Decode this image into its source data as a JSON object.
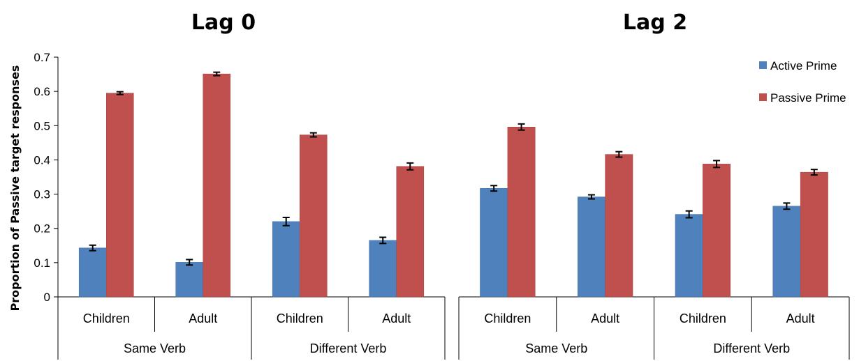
{
  "chart_data": {
    "type": "bar",
    "ylabel": "Proportion of Passive target responses",
    "ylim": [
      0,
      0.7
    ],
    "yticks": [
      "0",
      "0.1",
      "0.2",
      "0.3",
      "0.4",
      "0.5",
      "0.6",
      "0.7"
    ],
    "legend": {
      "placement": "top-right",
      "entries": [
        {
          "name": "Active Prime",
          "color": "#4F81BD"
        },
        {
          "name": "Passive Prime",
          "color": "#C0504D"
        }
      ]
    },
    "panels": [
      {
        "title": "Lag 0",
        "groups": [
          "Same Verb",
          "Different Verb"
        ],
        "categories": [
          "Children",
          "Adult",
          "Children",
          "Adult"
        ],
        "series": [
          {
            "name": "Active Prime",
            "values": [
              0.143,
              0.101,
              0.22,
              0.165
            ],
            "errors": [
              0.008,
              0.008,
              0.012,
              0.009
            ]
          },
          {
            "name": "Passive Prime",
            "values": [
              0.595,
              0.651,
              0.473,
              0.381
            ],
            "errors": [
              0.004,
              0.005,
              0.006,
              0.01
            ]
          }
        ]
      },
      {
        "title": "Lag 2",
        "groups": [
          "Same Verb",
          "Different Verb"
        ],
        "categories": [
          "Children",
          "Adult",
          "Children",
          "Adult"
        ],
        "series": [
          {
            "name": "Active Prime",
            "values": [
              0.317,
              0.292,
              0.241,
              0.265
            ],
            "errors": [
              0.008,
              0.006,
              0.01,
              0.009
            ]
          },
          {
            "name": "Passive Prime",
            "values": [
              0.496,
              0.416,
              0.388,
              0.364
            ],
            "errors": [
              0.009,
              0.008,
              0.01,
              0.008
            ]
          }
        ]
      }
    ]
  }
}
